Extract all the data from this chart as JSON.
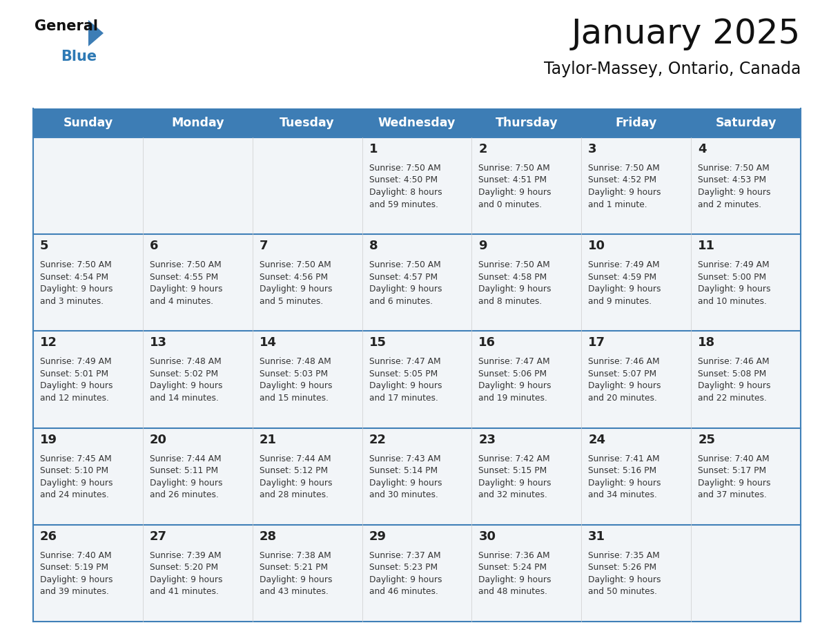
{
  "title": "January 2025",
  "subtitle": "Taylor-Massey, Ontario, Canada",
  "days_of_week": [
    "Sunday",
    "Monday",
    "Tuesday",
    "Wednesday",
    "Thursday",
    "Friday",
    "Saturday"
  ],
  "header_bg_color": "#3d7db5",
  "header_text_color": "#ffffff",
  "cell_bg_color": "#f2f5f8",
  "cell_bg_empty": "#ffffff",
  "separator_color": "#4080b8",
  "day_number_color": "#222222",
  "cell_text_color": "#333333",
  "title_color": "#111111",
  "subtitle_color": "#111111",
  "logo_general_color": "#111111",
  "logo_blue_color": "#2e7ab5",
  "logo_triangle_color": "#3d7db5",
  "week_rows": [
    {
      "days": [
        {
          "day": null,
          "sunrise": null,
          "sunset": null,
          "daylight": null
        },
        {
          "day": null,
          "sunrise": null,
          "sunset": null,
          "daylight": null
        },
        {
          "day": null,
          "sunrise": null,
          "sunset": null,
          "daylight": null
        },
        {
          "day": 1,
          "sunrise": "7:50 AM",
          "sunset": "4:50 PM",
          "daylight": "8 hours\nand 59 minutes."
        },
        {
          "day": 2,
          "sunrise": "7:50 AM",
          "sunset": "4:51 PM",
          "daylight": "9 hours\nand 0 minutes."
        },
        {
          "day": 3,
          "sunrise": "7:50 AM",
          "sunset": "4:52 PM",
          "daylight": "9 hours\nand 1 minute."
        },
        {
          "day": 4,
          "sunrise": "7:50 AM",
          "sunset": "4:53 PM",
          "daylight": "9 hours\nand 2 minutes."
        }
      ]
    },
    {
      "days": [
        {
          "day": 5,
          "sunrise": "7:50 AM",
          "sunset": "4:54 PM",
          "daylight": "9 hours\nand 3 minutes."
        },
        {
          "day": 6,
          "sunrise": "7:50 AM",
          "sunset": "4:55 PM",
          "daylight": "9 hours\nand 4 minutes."
        },
        {
          "day": 7,
          "sunrise": "7:50 AM",
          "sunset": "4:56 PM",
          "daylight": "9 hours\nand 5 minutes."
        },
        {
          "day": 8,
          "sunrise": "7:50 AM",
          "sunset": "4:57 PM",
          "daylight": "9 hours\nand 6 minutes."
        },
        {
          "day": 9,
          "sunrise": "7:50 AM",
          "sunset": "4:58 PM",
          "daylight": "9 hours\nand 8 minutes."
        },
        {
          "day": 10,
          "sunrise": "7:49 AM",
          "sunset": "4:59 PM",
          "daylight": "9 hours\nand 9 minutes."
        },
        {
          "day": 11,
          "sunrise": "7:49 AM",
          "sunset": "5:00 PM",
          "daylight": "9 hours\nand 10 minutes."
        }
      ]
    },
    {
      "days": [
        {
          "day": 12,
          "sunrise": "7:49 AM",
          "sunset": "5:01 PM",
          "daylight": "9 hours\nand 12 minutes."
        },
        {
          "day": 13,
          "sunrise": "7:48 AM",
          "sunset": "5:02 PM",
          "daylight": "9 hours\nand 14 minutes."
        },
        {
          "day": 14,
          "sunrise": "7:48 AM",
          "sunset": "5:03 PM",
          "daylight": "9 hours\nand 15 minutes."
        },
        {
          "day": 15,
          "sunrise": "7:47 AM",
          "sunset": "5:05 PM",
          "daylight": "9 hours\nand 17 minutes."
        },
        {
          "day": 16,
          "sunrise": "7:47 AM",
          "sunset": "5:06 PM",
          "daylight": "9 hours\nand 19 minutes."
        },
        {
          "day": 17,
          "sunrise": "7:46 AM",
          "sunset": "5:07 PM",
          "daylight": "9 hours\nand 20 minutes."
        },
        {
          "day": 18,
          "sunrise": "7:46 AM",
          "sunset": "5:08 PM",
          "daylight": "9 hours\nand 22 minutes."
        }
      ]
    },
    {
      "days": [
        {
          "day": 19,
          "sunrise": "7:45 AM",
          "sunset": "5:10 PM",
          "daylight": "9 hours\nand 24 minutes."
        },
        {
          "day": 20,
          "sunrise": "7:44 AM",
          "sunset": "5:11 PM",
          "daylight": "9 hours\nand 26 minutes."
        },
        {
          "day": 21,
          "sunrise": "7:44 AM",
          "sunset": "5:12 PM",
          "daylight": "9 hours\nand 28 minutes."
        },
        {
          "day": 22,
          "sunrise": "7:43 AM",
          "sunset": "5:14 PM",
          "daylight": "9 hours\nand 30 minutes."
        },
        {
          "day": 23,
          "sunrise": "7:42 AM",
          "sunset": "5:15 PM",
          "daylight": "9 hours\nand 32 minutes."
        },
        {
          "day": 24,
          "sunrise": "7:41 AM",
          "sunset": "5:16 PM",
          "daylight": "9 hours\nand 34 minutes."
        },
        {
          "day": 25,
          "sunrise": "7:40 AM",
          "sunset": "5:17 PM",
          "daylight": "9 hours\nand 37 minutes."
        }
      ]
    },
    {
      "days": [
        {
          "day": 26,
          "sunrise": "7:40 AM",
          "sunset": "5:19 PM",
          "daylight": "9 hours\nand 39 minutes."
        },
        {
          "day": 27,
          "sunrise": "7:39 AM",
          "sunset": "5:20 PM",
          "daylight": "9 hours\nand 41 minutes."
        },
        {
          "day": 28,
          "sunrise": "7:38 AM",
          "sunset": "5:21 PM",
          "daylight": "9 hours\nand 43 minutes."
        },
        {
          "day": 29,
          "sunrise": "7:37 AM",
          "sunset": "5:23 PM",
          "daylight": "9 hours\nand 46 minutes."
        },
        {
          "day": 30,
          "sunrise": "7:36 AM",
          "sunset": "5:24 PM",
          "daylight": "9 hours\nand 48 minutes."
        },
        {
          "day": 31,
          "sunrise": "7:35 AM",
          "sunset": "5:26 PM",
          "daylight": "9 hours\nand 50 minutes."
        },
        {
          "day": null,
          "sunrise": null,
          "sunset": null,
          "daylight": null
        }
      ]
    }
  ],
  "fig_width": 11.88,
  "fig_height": 9.18,
  "dpi": 100
}
